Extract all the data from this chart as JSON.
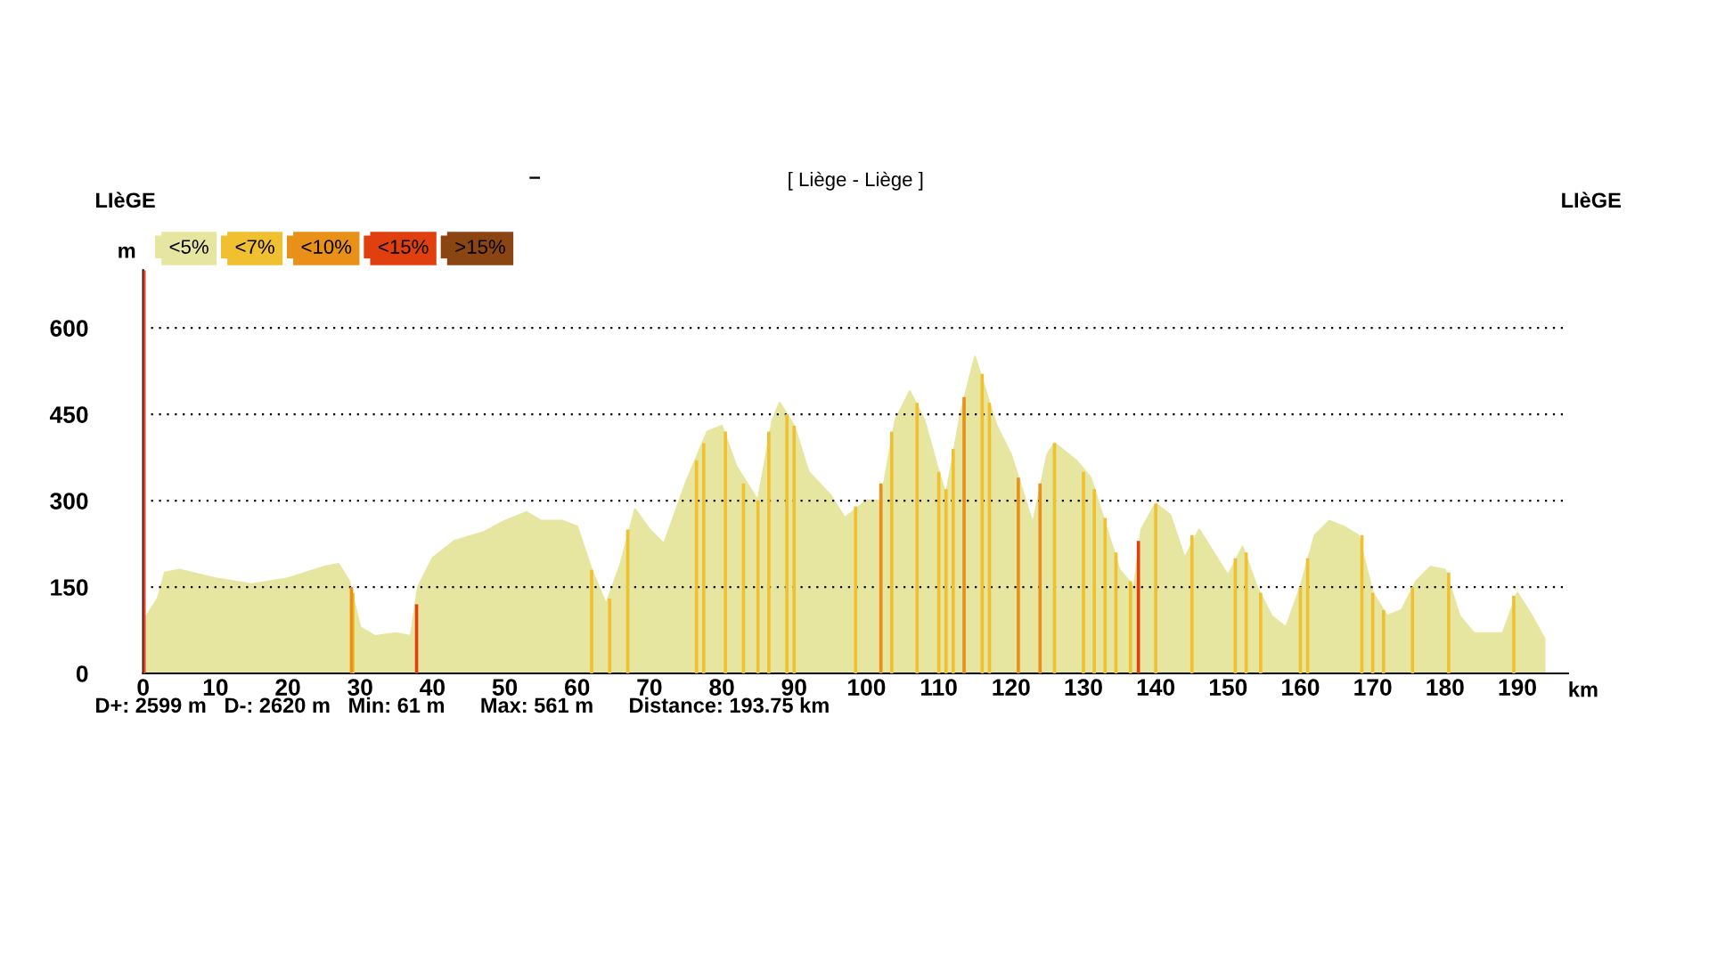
{
  "chart_data": {
    "type": "area",
    "title": "[ Liège - Liège ]",
    "xlabel": "km",
    "ylabel": "m",
    "annotations": [
      "LIèGE",
      "LIèGE",
      "D+: 2599 m   D-: 2620 m   Min: 61 m      Max: 561 m      Distance: 193.75 km",
      "–"
    ],
    "xlim": [
      0,
      197
    ],
    "ylim": [
      0,
      700
    ],
    "xticks": [
      0,
      10,
      20,
      30,
      40,
      50,
      60,
      70,
      80,
      90,
      100,
      110,
      120,
      130,
      140,
      150,
      160,
      170,
      180,
      190
    ],
    "yticks": [
      0,
      150,
      300,
      450,
      600
    ],
    "grid": "y",
    "legend": "top left",
    "ref_lines": [
      {
        "axis": "x",
        "value": 0,
        "color": "#e04020"
      }
    ],
    "series": [
      {
        "name": "<5%",
        "color": "#e6e6a0",
        "x": [
          0,
          2,
          3,
          5,
          10,
          15,
          20,
          25,
          27,
          28.5,
          30,
          32,
          35,
          37,
          38,
          40,
          43,
          47,
          50,
          53,
          55,
          58,
          60,
          62,
          64,
          66,
          68,
          70,
          72,
          75,
          78,
          80,
          82,
          85,
          87,
          88,
          90,
          92,
          95,
          97,
          100,
          102,
          104,
          106,
          108,
          110,
          111,
          113,
          115,
          117,
          118,
          120,
          122,
          123,
          125,
          126,
          129,
          131,
          132,
          135,
          137,
          138,
          140,
          142,
          144,
          146,
          148,
          150,
          152,
          154,
          156,
          158,
          160,
          162,
          164,
          166,
          168,
          170,
          172,
          174,
          176,
          178,
          180,
          182,
          184,
          188,
          190,
          192,
          193.75
        ],
        "values": [
          90,
          130,
          175,
          180,
          165,
          155,
          165,
          185,
          190,
          160,
          80,
          65,
          70,
          65,
          150,
          200,
          230,
          245,
          265,
          280,
          265,
          265,
          255,
          180,
          120,
          190,
          285,
          250,
          225,
          330,
          420,
          430,
          360,
          300,
          440,
          470,
          430,
          350,
          310,
          270,
          300,
          300,
          440,
          490,
          440,
          350,
          310,
          450,
          550,
          470,
          430,
          380,
          300,
          260,
          380,
          400,
          370,
          340,
          300,
          180,
          150,
          250,
          295,
          275,
          200,
          250,
          210,
          170,
          220,
          150,
          100,
          80,
          150,
          240,
          265,
          255,
          240,
          140,
          100,
          110,
          160,
          185,
          180,
          100,
          70,
          70,
          140,
          100,
          60
        ]
      },
      {
        "name": "<7%",
        "type": "bar",
        "color": "#f0c030",
        "x": [
          29,
          62,
          64.5,
          67,
          76.5,
          77.5,
          80.5,
          83,
          85,
          86.5,
          89,
          90,
          98.5,
          103.5,
          107,
          110,
          111,
          112,
          116,
          117,
          126,
          130,
          131.5,
          133,
          134.5,
          136.5,
          140,
          145,
          151,
          152.5,
          154.5,
          160,
          161,
          168.5,
          170,
          171.5,
          175.5,
          180.5,
          189.5
        ],
        "values": [
          140,
          180,
          130,
          250,
          370,
          400,
          420,
          330,
          300,
          420,
          450,
          430,
          290,
          420,
          470,
          350,
          320,
          390,
          520,
          470,
          400,
          350,
          320,
          270,
          210,
          160,
          295,
          240,
          200,
          210,
          140,
          150,
          200,
          240,
          140,
          110,
          150,
          175,
          135
        ]
      },
      {
        "name": "<10%",
        "type": "bar",
        "color": "#e89018",
        "x": [
          28.8,
          102,
          113.5,
          121,
          124
        ],
        "values": [
          150,
          330,
          480,
          340,
          330
        ]
      },
      {
        "name": "<15%",
        "type": "bar",
        "color": "#e04010",
        "x": [
          37.8,
          137.6
        ],
        "values": [
          120,
          230
        ]
      },
      {
        "name": ">15%",
        "type": "bar",
        "color": "#8b4513"
      }
    ]
  }
}
